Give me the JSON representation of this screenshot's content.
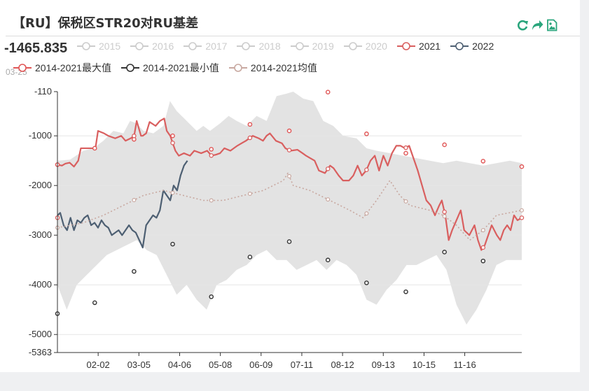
{
  "title": "【RU】保税区STR20对RU基差",
  "readout": {
    "value": "-1465.835",
    "date": "03-25"
  },
  "toolbar": {
    "icons": [
      "refresh-icon",
      "share-icon",
      "save-image-icon"
    ],
    "color": "#2aa57c"
  },
  "colors": {
    "series_2021": "#d95f5f",
    "series_2022": "#4d5f72",
    "max": "#e05555",
    "min": "#333333",
    "avg": "#c8a8a0",
    "range_fill": "#e3e3e3",
    "disabled": "#cccccc"
  },
  "chart_data": {
    "type": "line",
    "title": "【RU】保税区STR20对RU基差",
    "ylim": [
      -5363,
      -110
    ],
    "yticks": [
      -110,
      -1000,
      -2000,
      -3000,
      -4000,
      -5000,
      -5363
    ],
    "xtick_labels": [
      "02-02",
      "03-05",
      "04-06",
      "05-08",
      "06-09",
      "07-11",
      "08-12",
      "09-13",
      "10-15",
      "11-16"
    ],
    "x_range": [
      "01-01",
      "12-31"
    ],
    "legend": {
      "row1": [
        {
          "name": "2015",
          "active": false
        },
        {
          "name": "2016",
          "active": false
        },
        {
          "name": "2017",
          "active": false
        },
        {
          "name": "2018",
          "active": false
        },
        {
          "name": "2019",
          "active": false
        },
        {
          "name": "2020",
          "active": false
        },
        {
          "name": "2021",
          "active": true
        },
        {
          "name": "2022",
          "active": true
        }
      ],
      "row2": [
        {
          "name": "2014-2021最大值",
          "active": true
        },
        {
          "name": "2014-2021最小值",
          "active": true
        },
        {
          "name": "2014-2021均值",
          "active": true
        }
      ]
    },
    "series": [
      {
        "name": "2021",
        "points": [
          [
            1,
            -1580
          ],
          [
            6,
            -1600
          ],
          [
            10,
            -1560
          ],
          [
            15,
            -1540
          ],
          [
            20,
            -1620
          ],
          [
            25,
            -1500
          ],
          [
            28,
            -1250
          ],
          [
            40,
            -1250
          ],
          [
            45,
            -1250
          ],
          [
            48,
            -900
          ],
          [
            55,
            -950
          ],
          [
            60,
            -1000
          ],
          [
            68,
            -1050
          ],
          [
            75,
            -1000
          ],
          [
            80,
            -1100
          ],
          [
            86,
            -1050
          ],
          [
            90,
            -1000
          ],
          [
            93,
            -700
          ],
          [
            98,
            -1000
          ],
          [
            100,
            -1000
          ],
          [
            104,
            -950
          ],
          [
            108,
            -720
          ],
          [
            115,
            -800
          ],
          [
            120,
            -700
          ],
          [
            125,
            -650
          ],
          [
            128,
            -900
          ],
          [
            132,
            -1000
          ],
          [
            138,
            -1300
          ],
          [
            142,
            -1400
          ],
          [
            148,
            -1350
          ],
          [
            155,
            -1400
          ],
          [
            160,
            -1300
          ],
          [
            168,
            -1350
          ],
          [
            175,
            -1300
          ],
          [
            180,
            -1400
          ],
          [
            185,
            -1380
          ],
          [
            190,
            -1350
          ],
          [
            195,
            -1250
          ],
          [
            202,
            -1300
          ],
          [
            210,
            -1200
          ],
          [
            215,
            -1150
          ],
          [
            220,
            -1100
          ],
          [
            228,
            -1000
          ],
          [
            235,
            -1050
          ],
          [
            240,
            -1100
          ],
          [
            244,
            -1000
          ],
          [
            248,
            -950
          ],
          [
            255,
            -1100
          ],
          [
            262,
            -1150
          ],
          [
            266,
            -1250
          ],
          [
            272,
            -1300
          ],
          [
            280,
            -1280
          ],
          [
            286,
            -1350
          ],
          [
            290,
            -1400
          ],
          [
            295,
            -1450
          ],
          [
            300,
            -1500
          ],
          [
            305,
            -1700
          ],
          [
            312,
            -1750
          ],
          [
            318,
            -1600
          ],
          [
            322,
            -1650
          ],
          [
            328,
            -1800
          ],
          [
            333,
            -1900
          ],
          [
            340,
            -1900
          ],
          [
            345,
            -1800
          ],
          [
            350,
            -1600
          ],
          [
            355,
            -1800
          ],
          [
            360,
            -1700
          ],
          [
            365,
            -1500
          ],
          [
            370,
            -1400
          ],
          [
            375,
            -1700
          ],
          [
            380,
            -1400
          ],
          [
            385,
            -1600
          ],
          [
            390,
            -1350
          ],
          [
            395,
            -1200
          ],
          [
            400,
            -1200
          ],
          [
            405,
            -1250
          ],
          [
            410,
            -1200
          ],
          [
            415,
            -1450
          ],
          [
            420,
            -1700
          ],
          [
            425,
            -2000
          ],
          [
            430,
            -2300
          ],
          [
            435,
            -2400
          ],
          [
            440,
            -2600
          ],
          [
            445,
            -2400
          ],
          [
            448,
            -2300
          ],
          [
            452,
            -2600
          ],
          [
            456,
            -3100
          ],
          [
            460,
            -2900
          ],
          [
            465,
            -2700
          ],
          [
            470,
            -2500
          ],
          [
            474,
            -2900
          ],
          [
            480,
            -3000
          ],
          [
            486,
            -2800
          ],
          [
            490,
            -3100
          ],
          [
            494,
            -3300
          ],
          [
            498,
            -3200
          ],
          [
            502,
            -3000
          ],
          [
            506,
            -2800
          ],
          [
            512,
            -3000
          ],
          [
            516,
            -3100
          ],
          [
            520,
            -2900
          ],
          [
            524,
            -2800
          ],
          [
            528,
            -2900
          ],
          [
            532,
            -2600
          ],
          [
            536,
            -2700
          ],
          [
            541,
            -2650
          ]
        ]
      },
      {
        "name": "2022",
        "points": [
          [
            1,
            -2600
          ],
          [
            4,
            -2550
          ],
          [
            8,
            -2800
          ],
          [
            12,
            -2900
          ],
          [
            16,
            -2650
          ],
          [
            20,
            -2900
          ],
          [
            24,
            -2700
          ],
          [
            28,
            -2750
          ],
          [
            32,
            -2650
          ],
          [
            36,
            -2600
          ],
          [
            40,
            -2800
          ],
          [
            44,
            -2750
          ],
          [
            48,
            -2850
          ],
          [
            52,
            -2700
          ],
          [
            56,
            -2800
          ],
          [
            60,
            -2850
          ],
          [
            64,
            -3000
          ],
          [
            68,
            -2950
          ],
          [
            72,
            -2900
          ],
          [
            76,
            -3000
          ],
          [
            80,
            -2900
          ],
          [
            84,
            -2800
          ],
          [
            88,
            -2900
          ],
          [
            92,
            -2950
          ],
          [
            96,
            -3100
          ],
          [
            100,
            -3250
          ],
          [
            104,
            -2800
          ],
          [
            108,
            -2700
          ],
          [
            112,
            -2600
          ],
          [
            116,
            -2650
          ],
          [
            120,
            -2500
          ],
          [
            124,
            -2100
          ],
          [
            128,
            -2200
          ],
          [
            132,
            -2300
          ],
          [
            136,
            -2000
          ],
          [
            140,
            -2100
          ],
          [
            144,
            -1800
          ],
          [
            148,
            -1600
          ],
          [
            152,
            -1500
          ]
        ]
      },
      {
        "name": "2014-2021最大值",
        "points": [
          [
            1,
            -1580
          ],
          [
            57,
            -1250
          ],
          [
            116,
            -1070
          ],
          [
            174,
            -1000
          ],
          [
            232,
            -1270
          ],
          [
            290,
            -770
          ],
          [
            349,
            -900
          ],
          [
            407,
            -120
          ],
          [
            465,
            -960
          ],
          [
            524,
            -1350
          ],
          [
            582,
            -1180
          ],
          [
            640,
            -1510
          ],
          [
            698,
            -1620
          ]
        ]
      },
      {
        "name": "2014-2021最小值",
        "points": [
          [
            1,
            -4580
          ],
          [
            57,
            -4360
          ],
          [
            116,
            -3730
          ],
          [
            174,
            -3180
          ],
          [
            232,
            -4240
          ],
          [
            290,
            -3440
          ],
          [
            349,
            -3130
          ],
          [
            407,
            -3500
          ],
          [
            465,
            -3960
          ],
          [
            524,
            -4140
          ],
          [
            582,
            -3340
          ],
          [
            640,
            -3520
          ]
        ]
      },
      {
        "name": "2014-2021均值",
        "points": [
          [
            1,
            -2850
          ],
          [
            40,
            -2750
          ],
          [
            70,
            -2600
          ],
          [
            100,
            -2400
          ],
          [
            130,
            -2200
          ],
          [
            160,
            -2100
          ],
          [
            190,
            -2200
          ],
          [
            220,
            -2300
          ],
          [
            250,
            -2300
          ],
          [
            280,
            -2200
          ],
          [
            310,
            -2100
          ],
          [
            340,
            -1900
          ],
          [
            347,
            -1750
          ],
          [
            355,
            -2000
          ],
          [
            380,
            -2100
          ],
          [
            410,
            -2300
          ],
          [
            440,
            -2500
          ],
          [
            460,
            -2650
          ],
          [
            480,
            -2300
          ],
          [
            500,
            -1900
          ],
          [
            515,
            -2200
          ],
          [
            530,
            -2400
          ],
          [
            560,
            -2500
          ],
          [
            580,
            -2600
          ],
          [
            600,
            -2800
          ],
          [
            620,
            -3100
          ],
          [
            640,
            -2900
          ],
          [
            660,
            -2600
          ],
          [
            698,
            -2500
          ]
        ]
      }
    ],
    "range_band": {
      "upper": [
        [
          1,
          -1500
        ],
        [
          20,
          -1480
        ],
        [
          40,
          -1300
        ],
        [
          55,
          -1250
        ],
        [
          70,
          -1100
        ],
        [
          85,
          -900
        ],
        [
          100,
          -950
        ],
        [
          110,
          -700
        ],
        [
          120,
          -750
        ],
        [
          130,
          -900
        ],
        [
          145,
          -950
        ],
        [
          160,
          -800
        ],
        [
          170,
          -300
        ],
        [
          180,
          -500
        ],
        [
          195,
          -700
        ],
        [
          210,
          -900
        ],
        [
          220,
          -800
        ],
        [
          230,
          -900
        ],
        [
          245,
          -750
        ],
        [
          258,
          -600
        ],
        [
          270,
          -700
        ],
        [
          285,
          -800
        ],
        [
          300,
          -600
        ],
        [
          315,
          -700
        ],
        [
          330,
          -200
        ],
        [
          345,
          -150
        ],
        [
          355,
          -110
        ],
        [
          370,
          -250
        ],
        [
          385,
          -300
        ],
        [
          400,
          -700
        ],
        [
          415,
          -800
        ],
        [
          430,
          -1000
        ],
        [
          450,
          -1050
        ],
        [
          465,
          -1250
        ],
        [
          480,
          -1300
        ],
        [
          500,
          -1350
        ],
        [
          520,
          -1400
        ],
        [
          540,
          -1450
        ],
        [
          560,
          -1500
        ],
        [
          580,
          -1550
        ],
        [
          600,
          -1500
        ],
        [
          620,
          -1550
        ],
        [
          640,
          -1600
        ],
        [
          660,
          -1550
        ],
        [
          680,
          -1500
        ],
        [
          698,
          -1550
        ]
      ],
      "lower": [
        [
          1,
          -4000
        ],
        [
          15,
          -4500
        ],
        [
          30,
          -4000
        ],
        [
          45,
          -3800
        ],
        [
          60,
          -3600
        ],
        [
          75,
          -3400
        ],
        [
          90,
          -3300
        ],
        [
          105,
          -3200
        ],
        [
          120,
          -3100
        ],
        [
          135,
          -3300
        ],
        [
          150,
          -3400
        ],
        [
          165,
          -3800
        ],
        [
          180,
          -4200
        ],
        [
          195,
          -4000
        ],
        [
          210,
          -4300
        ],
        [
          225,
          -4500
        ],
        [
          240,
          -4000
        ],
        [
          255,
          -3900
        ],
        [
          270,
          -3700
        ],
        [
          285,
          -3600
        ],
        [
          300,
          -3400
        ],
        [
          315,
          -3300
        ],
        [
          330,
          -3500
        ],
        [
          345,
          -3500
        ],
        [
          360,
          -3700
        ],
        [
          375,
          -3600
        ],
        [
          390,
          -3500
        ],
        [
          405,
          -3700
        ],
        [
          420,
          -3500
        ],
        [
          435,
          -3600
        ],
        [
          450,
          -3800
        ],
        [
          465,
          -4300
        ],
        [
          480,
          -4400
        ],
        [
          495,
          -4100
        ],
        [
          510,
          -3900
        ],
        [
          525,
          -3600
        ],
        [
          540,
          -3600
        ],
        [
          555,
          -3500
        ],
        [
          570,
          -3400
        ],
        [
          585,
          -3700
        ],
        [
          600,
          -4400
        ],
        [
          615,
          -4800
        ],
        [
          630,
          -4500
        ],
        [
          645,
          -4100
        ],
        [
          660,
          -3600
        ],
        [
          675,
          -3500
        ],
        [
          698,
          -3500
        ]
      ]
    }
  }
}
